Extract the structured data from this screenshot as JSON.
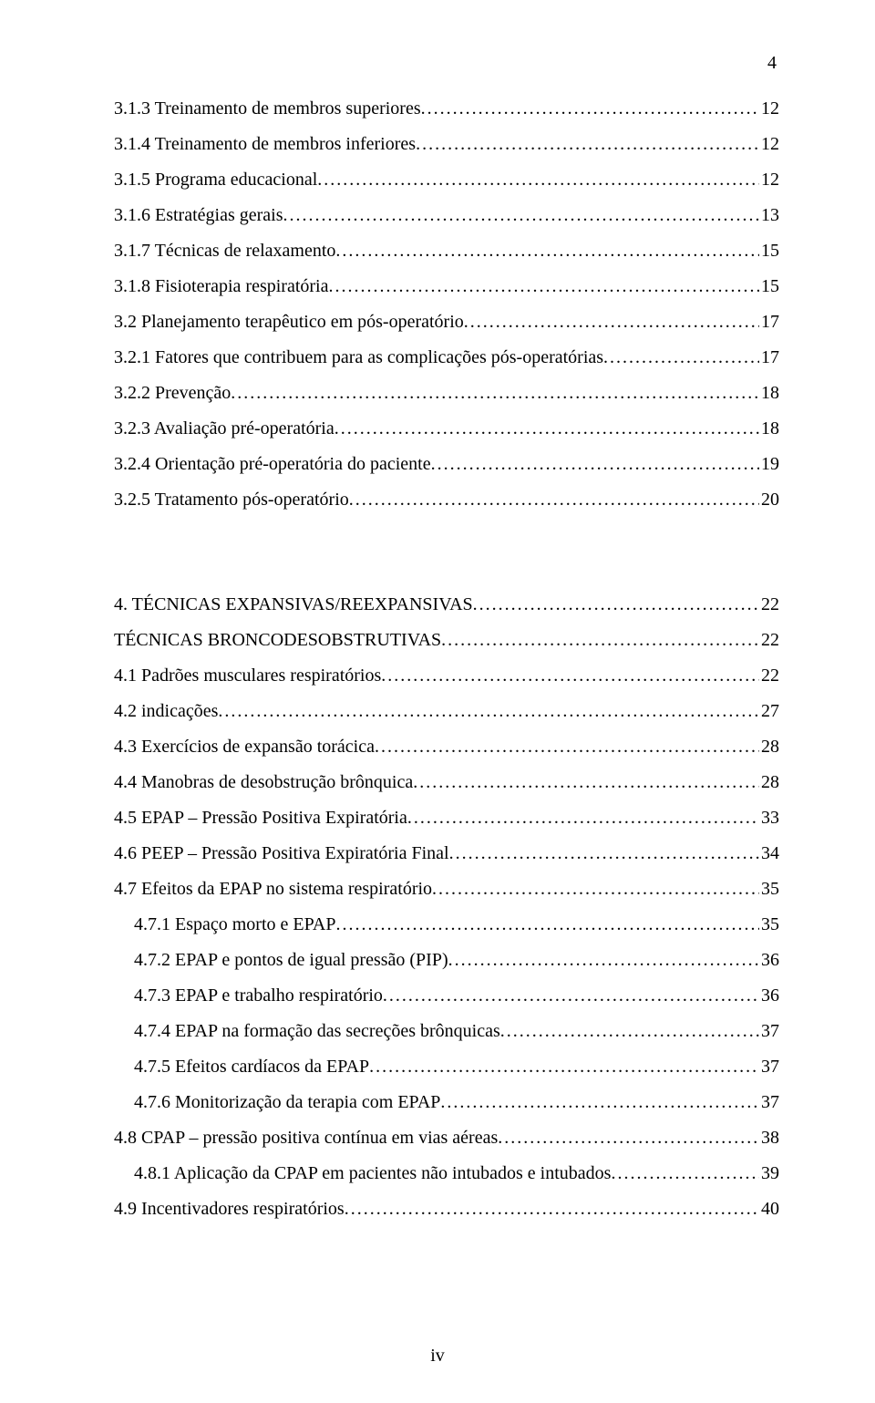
{
  "pageNumberTop": "4",
  "footerLabel": "iv",
  "entries": [
    {
      "label": "3.1.3 Treinamento de membros superiores",
      "page": " 12",
      "indent": 0
    },
    {
      "label": "3.1.4 Treinamento de membros inferiores",
      "page": " 12",
      "indent": 0
    },
    {
      "label": "3.1.5 Programa educacional",
      "page": " 12",
      "indent": 0
    },
    {
      "label": "3.1.6 Estratégias gerais",
      "page": "13",
      "indent": 0
    },
    {
      "label": "3.1.7 Técnicas de relaxamento",
      "page": "15",
      "indent": 0
    },
    {
      "label": "3.1.8 Fisioterapia respiratória",
      "page": "15",
      "indent": 0
    },
    {
      "label": "3.2 Planejamento terapêutico em pós-operatório",
      "page": "17",
      "indent": 0
    },
    {
      "label": "3.2.1 Fatores que contribuem para as complicações  pós-operatórias",
      "page": "17",
      "indent": 0
    },
    {
      "label": "3.2.2 Prevenção",
      "page": "18",
      "indent": 0
    },
    {
      "label": "3.2.3 Avaliação pré-operatória",
      "page": "18",
      "indent": 0
    },
    {
      "label": "3.2.4 Orientação pré-operatória do paciente",
      "page": "19",
      "indent": 0
    },
    {
      "label": "3.2.5 Tratamento pós-operatório",
      "page": "20",
      "indent": 0
    }
  ],
  "section4": [
    {
      "label": "4. TÉCNICAS EXPANSIVAS/REEXPANSIVAS",
      "page": "22",
      "indent": 0
    },
    {
      "label": "TÉCNICAS BRONCODESOBSTRUTIVAS",
      "page": "22",
      "indent": 0
    },
    {
      "label": "4.1 Padrões musculares respiratórios",
      "page": "22",
      "indent": 0
    },
    {
      "label": "4.2 indicações",
      "page": "27",
      "indent": 0
    },
    {
      "label": "4.3 Exercícios de expansão torácica",
      "page": "28",
      "indent": 0
    },
    {
      "label": "4.4 Manobras de desobstrução brônquica",
      "page": "28",
      "indent": 0
    },
    {
      "label": "4.5 EPAP – Pressão Positiva Expiratória",
      "page": "33",
      "indent": 0
    },
    {
      "label": "4.6 PEEP – Pressão Positiva Expiratória Final",
      "page": "34",
      "indent": 0
    },
    {
      "label": "4.7 Efeitos da EPAP no sistema respiratório",
      "page": "35",
      "indent": 0
    },
    {
      "label": "4.7.1 Espaço morto e EPAP",
      "page": "35",
      "indent": 1
    },
    {
      "label": "4.7.2 EPAP e pontos de igual pressão (PIP)",
      "page": "36",
      "indent": 1
    },
    {
      "label": "4.7.3 EPAP e trabalho respiratório",
      "page": "36",
      "indent": 1
    },
    {
      "label": "4.7.4 EPAP na formação das secreções brônquicas",
      "page": "37",
      "indent": 1
    },
    {
      "label": "4.7.5 Efeitos cardíacos da EPAP",
      "page": "37",
      "indent": 1
    },
    {
      "label": "4.7.6 Monitorização da terapia com EPAP",
      "page": "37",
      "indent": 1
    },
    {
      "label": "4.8 CPAP – pressão positiva contínua em vias aéreas",
      "page": "38",
      "indent": 0
    },
    {
      "label": "4.8.1 Aplicação da CPAP em pacientes não intubados e intubados",
      "page": "39",
      "indent": 1
    },
    {
      "label": "4.9 Incentivadores respiratórios",
      "page": "40",
      "indent": 0
    }
  ]
}
